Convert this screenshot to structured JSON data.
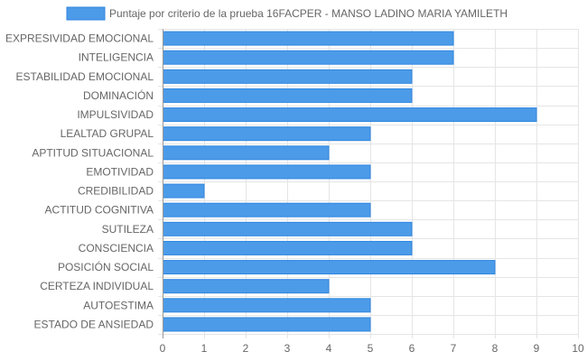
{
  "chart_data": {
    "type": "bar",
    "orientation": "horizontal",
    "categories": [
      "EXPRESIVIDAD EMOCIONAL",
      "INTELIGENCIA",
      "ESTABILIDAD EMOCIONAL",
      "DOMINACIÓN",
      "IMPULSIVIDAD",
      "LEALTAD GRUPAL",
      "APTITUD SITUACIONAL",
      "EMOTIVIDAD",
      "CREDIBILIDAD",
      "ACTITUD COGNITIVA",
      "SUTILEZA",
      "CONSCIENCIA",
      "POSICIÓN SOCIAL",
      "CERTEZA INDIVIDUAL",
      "AUTOESTIMA",
      "ESTADO DE ANSIEDAD"
    ],
    "series": [
      {
        "name": "Puntaje por criterio de la prueba 16FACPER - MANSO LADINO MARIA YAMILETH",
        "values": [
          7,
          7,
          6,
          6,
          9,
          5,
          4,
          5,
          1,
          5,
          6,
          6,
          8,
          4,
          5,
          5
        ]
      }
    ],
    "xlim": [
      0,
      10
    ],
    "x_ticks": [
      "0",
      "1",
      "2",
      "3",
      "4",
      "5",
      "6",
      "7",
      "8",
      "9",
      "10"
    ],
    "grid": true,
    "legend_position": "top",
    "colors": {
      "bar_fill": "#4C9BE8",
      "bar_stroke": "#2F86E0",
      "grid": "#E5E5E5",
      "axis": "#999999",
      "text": "#666666"
    }
  }
}
